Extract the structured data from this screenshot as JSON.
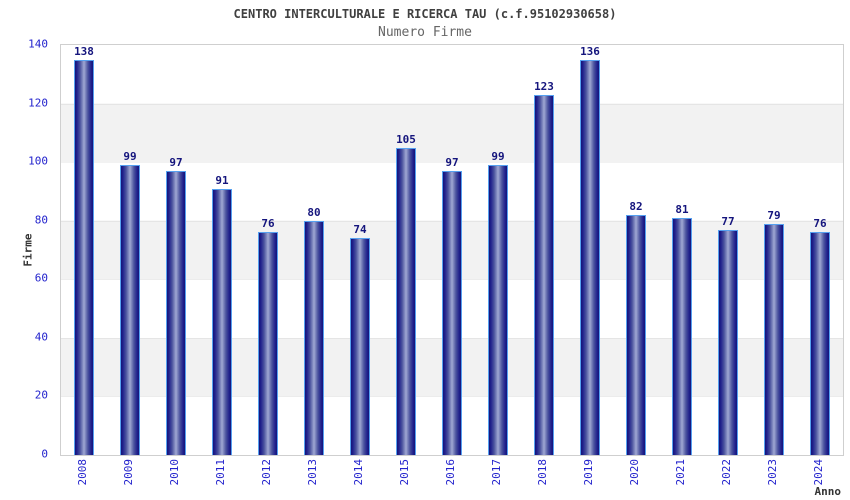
{
  "header": {
    "title": "CENTRO INTERCULTURALE E RICERCA TAU (c.f.95102930658)",
    "subtitle": "Numero Firme"
  },
  "chart_data": {
    "type": "bar",
    "title": "CENTRO INTERCULTURALE E RICERCA TAU (c.f.95102930658)",
    "subtitle": "Numero Firme",
    "xlabel": "Anno",
    "ylabel": "Firme",
    "categories": [
      "2008",
      "2009",
      "2010",
      "2011",
      "2012",
      "2013",
      "2014",
      "2015",
      "2016",
      "2017",
      "2018",
      "2019",
      "2020",
      "2021",
      "2022",
      "2023",
      "2024"
    ],
    "values": [
      138,
      99,
      97,
      91,
      76,
      80,
      74,
      105,
      97,
      99,
      123,
      136,
      82,
      81,
      77,
      79,
      76
    ],
    "ylim": [
      0,
      140
    ],
    "yticks": [
      0,
      20,
      40,
      60,
      80,
      100,
      120,
      140
    ],
    "grid": "horizontal-bands-alternating",
    "legend_position": "none",
    "data_labels": "above-bars",
    "colors": {
      "bar_edge": "#141478",
      "bar_center": "#a0a8d4",
      "bar_border": "#55a0f0",
      "axis_label_text": "#2323cd",
      "value_label_text": "#15157d",
      "title_text": "#404040",
      "subtitle_text": "#666666",
      "band_gray": "#f2f2f2",
      "plot_border": "#cfcfcf"
    }
  }
}
